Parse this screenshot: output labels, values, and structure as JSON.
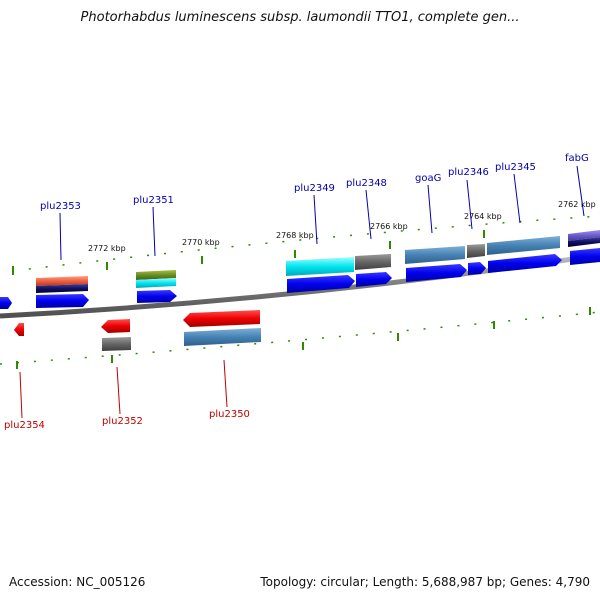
{
  "title": "Photorhabdus luminescens subsp. laumondii TTO1, complete gen...",
  "footer": {
    "accession": "Accession: NC_005126",
    "stats": "Topology: circular; Length: 5,688,987 bp; Genes: 4,790"
  },
  "colors": {
    "forward_label": "#0000b0",
    "reverse_label": "#c00000",
    "backbone": "#808080",
    "tick": "#2e8b00",
    "cds_forward": "#0000ee",
    "cds_reverse": "#ee0000"
  },
  "scale_labels": [
    {
      "id": "tick-2772",
      "text": "2772 kbp"
    },
    {
      "id": "tick-2770",
      "text": "2770 kbp"
    },
    {
      "id": "tick-2768",
      "text": "2768 kbp"
    },
    {
      "id": "tick-2766",
      "text": "2766 kbp"
    },
    {
      "id": "tick-2764",
      "text": "2764 kbp"
    },
    {
      "id": "tick-2762",
      "text": "2762 kbp"
    }
  ],
  "forward_genes": [
    {
      "id": "plu2353",
      "label": "plu2353"
    },
    {
      "id": "plu2351",
      "label": "plu2351"
    },
    {
      "id": "plu2349",
      "label": "plu2349"
    },
    {
      "id": "plu2348",
      "label": "plu2348"
    },
    {
      "id": "goaG",
      "label": "goaG"
    },
    {
      "id": "plu2346",
      "label": "plu2346"
    },
    {
      "id": "plu2345",
      "label": "plu2345"
    },
    {
      "id": "fabG",
      "label": "fabG"
    }
  ],
  "reverse_genes": [
    {
      "id": "plu2354",
      "label": "plu2354"
    },
    {
      "id": "plu2352",
      "label": "plu2352"
    },
    {
      "id": "plu2350",
      "label": "plu2350"
    }
  ]
}
